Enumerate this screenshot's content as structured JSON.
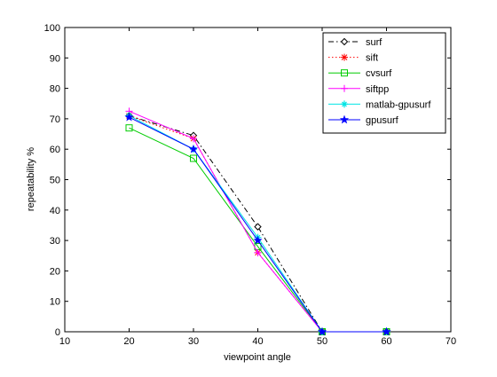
{
  "chart_data": {
    "type": "line",
    "title": "",
    "xlabel": "viewpoint angle",
    "ylabel": "repeatability %",
    "xlim": [
      10,
      70
    ],
    "ylim": [
      0,
      100
    ],
    "x_ticks": [
      "10",
      "20",
      "30",
      "40",
      "50",
      "60",
      "70"
    ],
    "y_ticks": [
      "0",
      "10",
      "20",
      "30",
      "40",
      "50",
      "60",
      "70",
      "80",
      "90",
      "100"
    ],
    "grid": false,
    "legend_position": "top-right",
    "x": [
      20,
      30,
      40,
      50,
      60
    ],
    "series": [
      {
        "name": "surf",
        "color": "#000000",
        "line": "dashdot",
        "marker": "diamond",
        "values": [
          71,
          64.5,
          34.5,
          0,
          0
        ]
      },
      {
        "name": "sift",
        "color": "#ff0000",
        "line": "dotted",
        "marker": "asterisk",
        "values": [
          71,
          63.5,
          26,
          0,
          0
        ]
      },
      {
        "name": "cvsurf",
        "color": "#00cc00",
        "line": "solid",
        "marker": "square",
        "values": [
          67,
          57,
          28,
          0,
          0
        ]
      },
      {
        "name": "siftpp",
        "color": "#ff00ff",
        "line": "solid",
        "marker": "plus",
        "values": [
          72.5,
          63.5,
          26,
          0,
          0
        ]
      },
      {
        "name": "matlab-gpusurf",
        "color": "#00e5e5",
        "line": "solid",
        "marker": "star4",
        "values": [
          71,
          60,
          31,
          0,
          0
        ]
      },
      {
        "name": "gpusurf",
        "color": "#0000ff",
        "line": "solid",
        "marker": "pentagram",
        "values": [
          70.5,
          60,
          30,
          0,
          0
        ]
      }
    ]
  }
}
